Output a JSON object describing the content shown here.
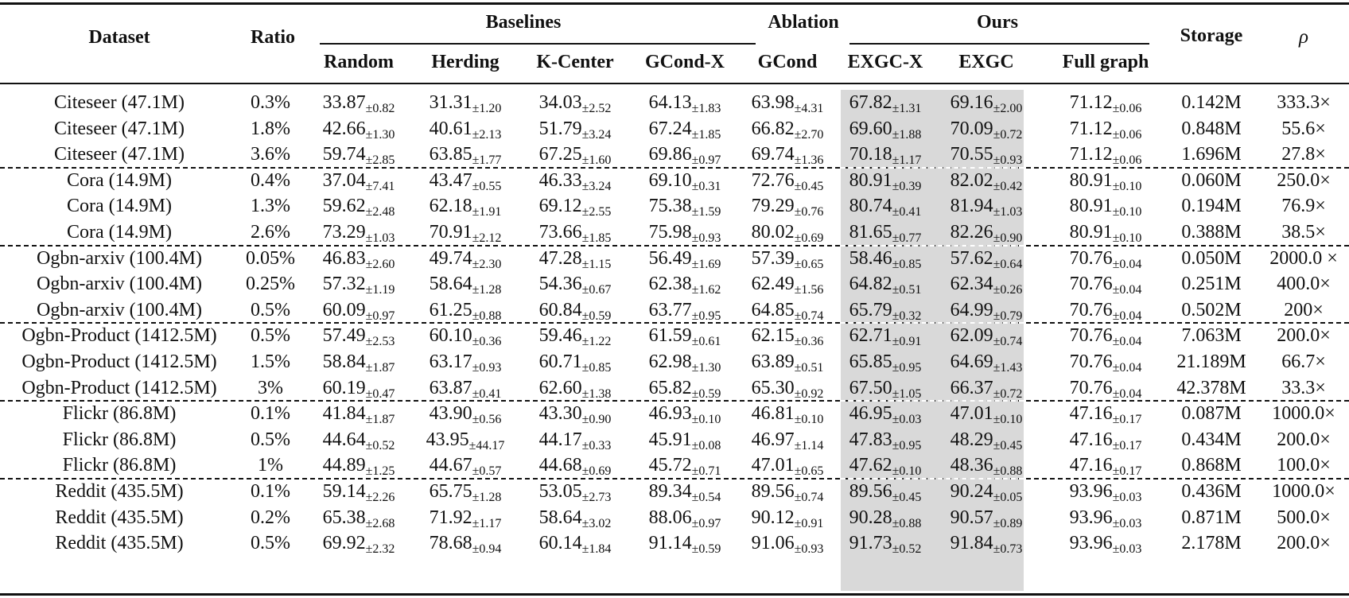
{
  "table": {
    "header": {
      "dataset": "Dataset",
      "ratio": "Ratio",
      "groups": {
        "baselines": "Baselines",
        "ablation": "Ablation",
        "ours": "Ours"
      },
      "columns": {
        "random": "Random",
        "herding": "Herding",
        "kcenter": "K-Center",
        "gcondx": "GCond-X",
        "gcond": "GCond",
        "exgcx": "EXGC-X",
        "exgc": "EXGC",
        "full": "Full graph"
      },
      "storage": "Storage",
      "rho": "ρ"
    },
    "highlight_color": "#d9d9d9",
    "rows": [
      {
        "dataset": "Citeseer (47.1M)",
        "ratio": "0.3%",
        "random": [
          "33.87",
          "±0.82"
        ],
        "herding": [
          "31.31",
          "±1.20"
        ],
        "kcenter": [
          "34.03",
          "±2.52"
        ],
        "gcondx": [
          "64.13",
          "±1.83"
        ],
        "gcond": [
          "63.98",
          "±4.31"
        ],
        "exgcx": [
          "67.82",
          "±1.31"
        ],
        "exgc": [
          "69.16",
          "±2.00"
        ],
        "full": [
          "71.12",
          "±0.06"
        ],
        "storage": "0.142M",
        "rho": "333.3×"
      },
      {
        "dataset": "Citeseer (47.1M)",
        "ratio": "1.8%",
        "random": [
          "42.66",
          "±1.30"
        ],
        "herding": [
          "40.61",
          "±2.13"
        ],
        "kcenter": [
          "51.79",
          "±3.24"
        ],
        "gcondx": [
          "67.24",
          "±1.85"
        ],
        "gcond": [
          "66.82",
          "±2.70"
        ],
        "exgcx": [
          "69.60",
          "±1.88"
        ],
        "exgc": [
          "70.09",
          "±0.72"
        ],
        "full": [
          "71.12",
          "±0.06"
        ],
        "storage": "0.848M",
        "rho": "55.6×"
      },
      {
        "dataset": "Citeseer (47.1M)",
        "ratio": "3.6%",
        "random": [
          "59.74",
          "±2.85"
        ],
        "herding": [
          "63.85",
          "±1.77"
        ],
        "kcenter": [
          "67.25",
          "±1.60"
        ],
        "gcondx": [
          "69.86",
          "±0.97"
        ],
        "gcond": [
          "69.74",
          "±1.36"
        ],
        "exgcx": [
          "70.18",
          "±1.17"
        ],
        "exgc": [
          "70.55",
          "±0.93"
        ],
        "full": [
          "71.12",
          "±0.06"
        ],
        "storage": "1.696M",
        "rho": "27.8×"
      },
      {
        "dataset": "Cora (14.9M)",
        "ratio": "0.4%",
        "random": [
          "37.04",
          "±7.41"
        ],
        "herding": [
          "43.47",
          "±0.55"
        ],
        "kcenter": [
          "46.33",
          "±3.24"
        ],
        "gcondx": [
          "69.10",
          "±0.31"
        ],
        "gcond": [
          "72.76",
          "±0.45"
        ],
        "exgcx": [
          "80.91",
          "±0.39"
        ],
        "exgc": [
          "82.02",
          "±0.42"
        ],
        "full": [
          "80.91",
          "±0.10"
        ],
        "storage": "0.060M",
        "rho": "250.0×"
      },
      {
        "dataset": "Cora (14.9M)",
        "ratio": "1.3%",
        "random": [
          "59.62",
          "±2.48"
        ],
        "herding": [
          "62.18",
          "±1.91"
        ],
        "kcenter": [
          "69.12",
          "±2.55"
        ],
        "gcondx": [
          "75.38",
          "±1.59"
        ],
        "gcond": [
          "79.29",
          "±0.76"
        ],
        "exgcx": [
          "80.74",
          "±0.41"
        ],
        "exgc": [
          "81.94",
          "±1.03"
        ],
        "full": [
          "80.91",
          "±0.10"
        ],
        "storage": "0.194M",
        "rho": "76.9×"
      },
      {
        "dataset": "Cora (14.9M)",
        "ratio": "2.6%",
        "random": [
          "73.29",
          "±1.03"
        ],
        "herding": [
          "70.91",
          "±2.12"
        ],
        "kcenter": [
          "73.66",
          "±1.85"
        ],
        "gcondx": [
          "75.98",
          "±0.93"
        ],
        "gcond": [
          "80.02",
          "±0.69"
        ],
        "exgcx": [
          "81.65",
          "±0.77"
        ],
        "exgc": [
          "82.26",
          "±0.90"
        ],
        "full": [
          "80.91",
          "±0.10"
        ],
        "storage": "0.388M",
        "rho": "38.5×"
      },
      {
        "dataset": "Ogbn-arxiv (100.4M)",
        "ratio": "0.05%",
        "random": [
          "46.83",
          "±2.60"
        ],
        "herding": [
          "49.74",
          "±2.30"
        ],
        "kcenter": [
          "47.28",
          "±1.15"
        ],
        "gcondx": [
          "56.49",
          "±1.69"
        ],
        "gcond": [
          "57.39",
          "±0.65"
        ],
        "exgcx": [
          "58.46",
          "±0.85"
        ],
        "exgc": [
          "57.62",
          "±0.64"
        ],
        "full": [
          "70.76",
          "±0.04"
        ],
        "storage": "0.050M",
        "rho": "2000.0 ×"
      },
      {
        "dataset": "Ogbn-arxiv (100.4M)",
        "ratio": "0.25%",
        "random": [
          "57.32",
          "±1.19"
        ],
        "herding": [
          "58.64",
          "±1.28"
        ],
        "kcenter": [
          "54.36",
          "±0.67"
        ],
        "gcondx": [
          "62.38",
          "±1.62"
        ],
        "gcond": [
          "62.49",
          "±1.56"
        ],
        "exgcx": [
          "64.82",
          "±0.51"
        ],
        "exgc": [
          "62.34",
          "±0.26"
        ],
        "full": [
          "70.76",
          "±0.04"
        ],
        "storage": "0.251M",
        "rho": "400.0×"
      },
      {
        "dataset": "Ogbn-arxiv (100.4M)",
        "ratio": "0.5%",
        "random": [
          "60.09",
          "±0.97"
        ],
        "herding": [
          "61.25",
          "±0.88"
        ],
        "kcenter": [
          "60.84",
          "±0.59"
        ],
        "gcondx": [
          "63.77",
          "±0.95"
        ],
        "gcond": [
          "64.85",
          "±0.74"
        ],
        "exgcx": [
          "65.79",
          "±0.32"
        ],
        "exgc": [
          "64.99",
          "±0.79"
        ],
        "full": [
          "70.76",
          "±0.04"
        ],
        "storage": "0.502M",
        "rho": "200×"
      },
      {
        "dataset": "Ogbn-Product (1412.5M)",
        "ratio": "0.5%",
        "random": [
          "57.49",
          "±2.53"
        ],
        "herding": [
          "60.10",
          "±0.36"
        ],
        "kcenter": [
          "59.46",
          "±1.22"
        ],
        "gcondx": [
          "61.59",
          "±0.61"
        ],
        "gcond": [
          "62.15",
          "±0.36"
        ],
        "exgcx": [
          "62.71",
          "±0.91"
        ],
        "exgc": [
          "62.09",
          "±0.74"
        ],
        "full": [
          "70.76",
          "±0.04"
        ],
        "storage": "7.063M",
        "rho": "200.0×"
      },
      {
        "dataset": "Ogbn-Product (1412.5M)",
        "ratio": "1.5%",
        "random": [
          "58.84",
          "±1.87"
        ],
        "herding": [
          "63.17",
          "±0.93"
        ],
        "kcenter": [
          "60.71",
          "±0.85"
        ],
        "gcondx": [
          "62.98",
          "±1.30"
        ],
        "gcond": [
          "63.89",
          "±0.51"
        ],
        "exgcx": [
          "65.85",
          "±0.95"
        ],
        "exgc": [
          "64.69",
          "±1.43"
        ],
        "full": [
          "70.76",
          "±0.04"
        ],
        "storage": "21.189M",
        "rho": "66.7×"
      },
      {
        "dataset": "Ogbn-Product (1412.5M)",
        "ratio": "3%",
        "random": [
          "60.19",
          "±0.47"
        ],
        "herding": [
          "63.87",
          "±0.41"
        ],
        "kcenter": [
          "62.60",
          "±1.38"
        ],
        "gcondx": [
          "65.82",
          "±0.59"
        ],
        "gcond": [
          "65.30",
          "±0.92"
        ],
        "exgcx": [
          "67.50",
          "±1.05"
        ],
        "exgc": [
          "66.37",
          "±0.72"
        ],
        "full": [
          "70.76",
          "±0.04"
        ],
        "storage": "42.378M",
        "rho": "33.3×"
      },
      {
        "dataset": "Flickr (86.8M)",
        "ratio": "0.1%",
        "random": [
          "41.84",
          "±1.87"
        ],
        "herding": [
          "43.90",
          "±0.56"
        ],
        "kcenter": [
          "43.30",
          "±0.90"
        ],
        "gcondx": [
          "46.93",
          "±0.10"
        ],
        "gcond": [
          "46.81",
          "±0.10"
        ],
        "exgcx": [
          "46.95",
          "±0.03"
        ],
        "exgc": [
          "47.01",
          "±0.10"
        ],
        "full": [
          "47.16",
          "±0.17"
        ],
        "storage": "0.087M",
        "rho": "1000.0×"
      },
      {
        "dataset": "Flickr (86.8M)",
        "ratio": "0.5%",
        "random": [
          "44.64",
          "±0.52"
        ],
        "herding": [
          "43.95",
          "±44.17"
        ],
        "kcenter": [
          "44.17",
          "±0.33"
        ],
        "gcondx": [
          "45.91",
          "±0.08"
        ],
        "gcond": [
          "46.97",
          "±1.14"
        ],
        "exgcx": [
          "47.83",
          "±0.95"
        ],
        "exgc": [
          "48.29",
          "±0.45"
        ],
        "full": [
          "47.16",
          "±0.17"
        ],
        "storage": "0.434M",
        "rho": "200.0×"
      },
      {
        "dataset": "Flickr (86.8M)",
        "ratio": "1%",
        "random": [
          "44.89",
          "±1.25"
        ],
        "herding": [
          "44.67",
          "±0.57"
        ],
        "kcenter": [
          "44.68",
          "±0.69"
        ],
        "gcondx": [
          "45.72",
          "±0.71"
        ],
        "gcond": [
          "47.01",
          "±0.65"
        ],
        "exgcx": [
          "47.62",
          "±0.10"
        ],
        "exgc": [
          "48.36",
          "±0.88"
        ],
        "full": [
          "47.16",
          "±0.17"
        ],
        "storage": "0.868M",
        "rho": "100.0×"
      },
      {
        "dataset": "Reddit (435.5M)",
        "ratio": "0.1%",
        "random": [
          "59.14",
          "±2.26"
        ],
        "herding": [
          "65.75",
          "±1.28"
        ],
        "kcenter": [
          "53.05",
          "±2.73"
        ],
        "gcondx": [
          "89.34",
          "±0.54"
        ],
        "gcond": [
          "89.56",
          "±0.74"
        ],
        "exgcx": [
          "89.56",
          "±0.45"
        ],
        "exgc": [
          "90.24",
          "±0.05"
        ],
        "full": [
          "93.96",
          "±0.03"
        ],
        "storage": "0.436M",
        "rho": "1000.0×"
      },
      {
        "dataset": "Reddit (435.5M)",
        "ratio": "0.2%",
        "random": [
          "65.38",
          "±2.68"
        ],
        "herding": [
          "71.92",
          "±1.17"
        ],
        "kcenter": [
          "58.64",
          "±3.02"
        ],
        "gcondx": [
          "88.06",
          "±0.97"
        ],
        "gcond": [
          "90.12",
          "±0.91"
        ],
        "exgcx": [
          "90.28",
          "±0.88"
        ],
        "exgc": [
          "90.57",
          "±0.89"
        ],
        "full": [
          "93.96",
          "±0.03"
        ],
        "storage": "0.871M",
        "rho": "500.0×"
      },
      {
        "dataset": "Reddit (435.5M)",
        "ratio": "0.5%",
        "random": [
          "69.92",
          "±2.32"
        ],
        "herding": [
          "78.68",
          "±0.94"
        ],
        "kcenter": [
          "60.14",
          "±1.84"
        ],
        "gcondx": [
          "91.14",
          "±0.59"
        ],
        "gcond": [
          "91.06",
          "±0.93"
        ],
        "exgcx": [
          "91.73",
          "±0.52"
        ],
        "exgc": [
          "91.84",
          "±0.73"
        ],
        "full": [
          "93.96",
          "±0.03"
        ],
        "storage": "2.178M",
        "rho": "200.0×"
      }
    ]
  }
}
